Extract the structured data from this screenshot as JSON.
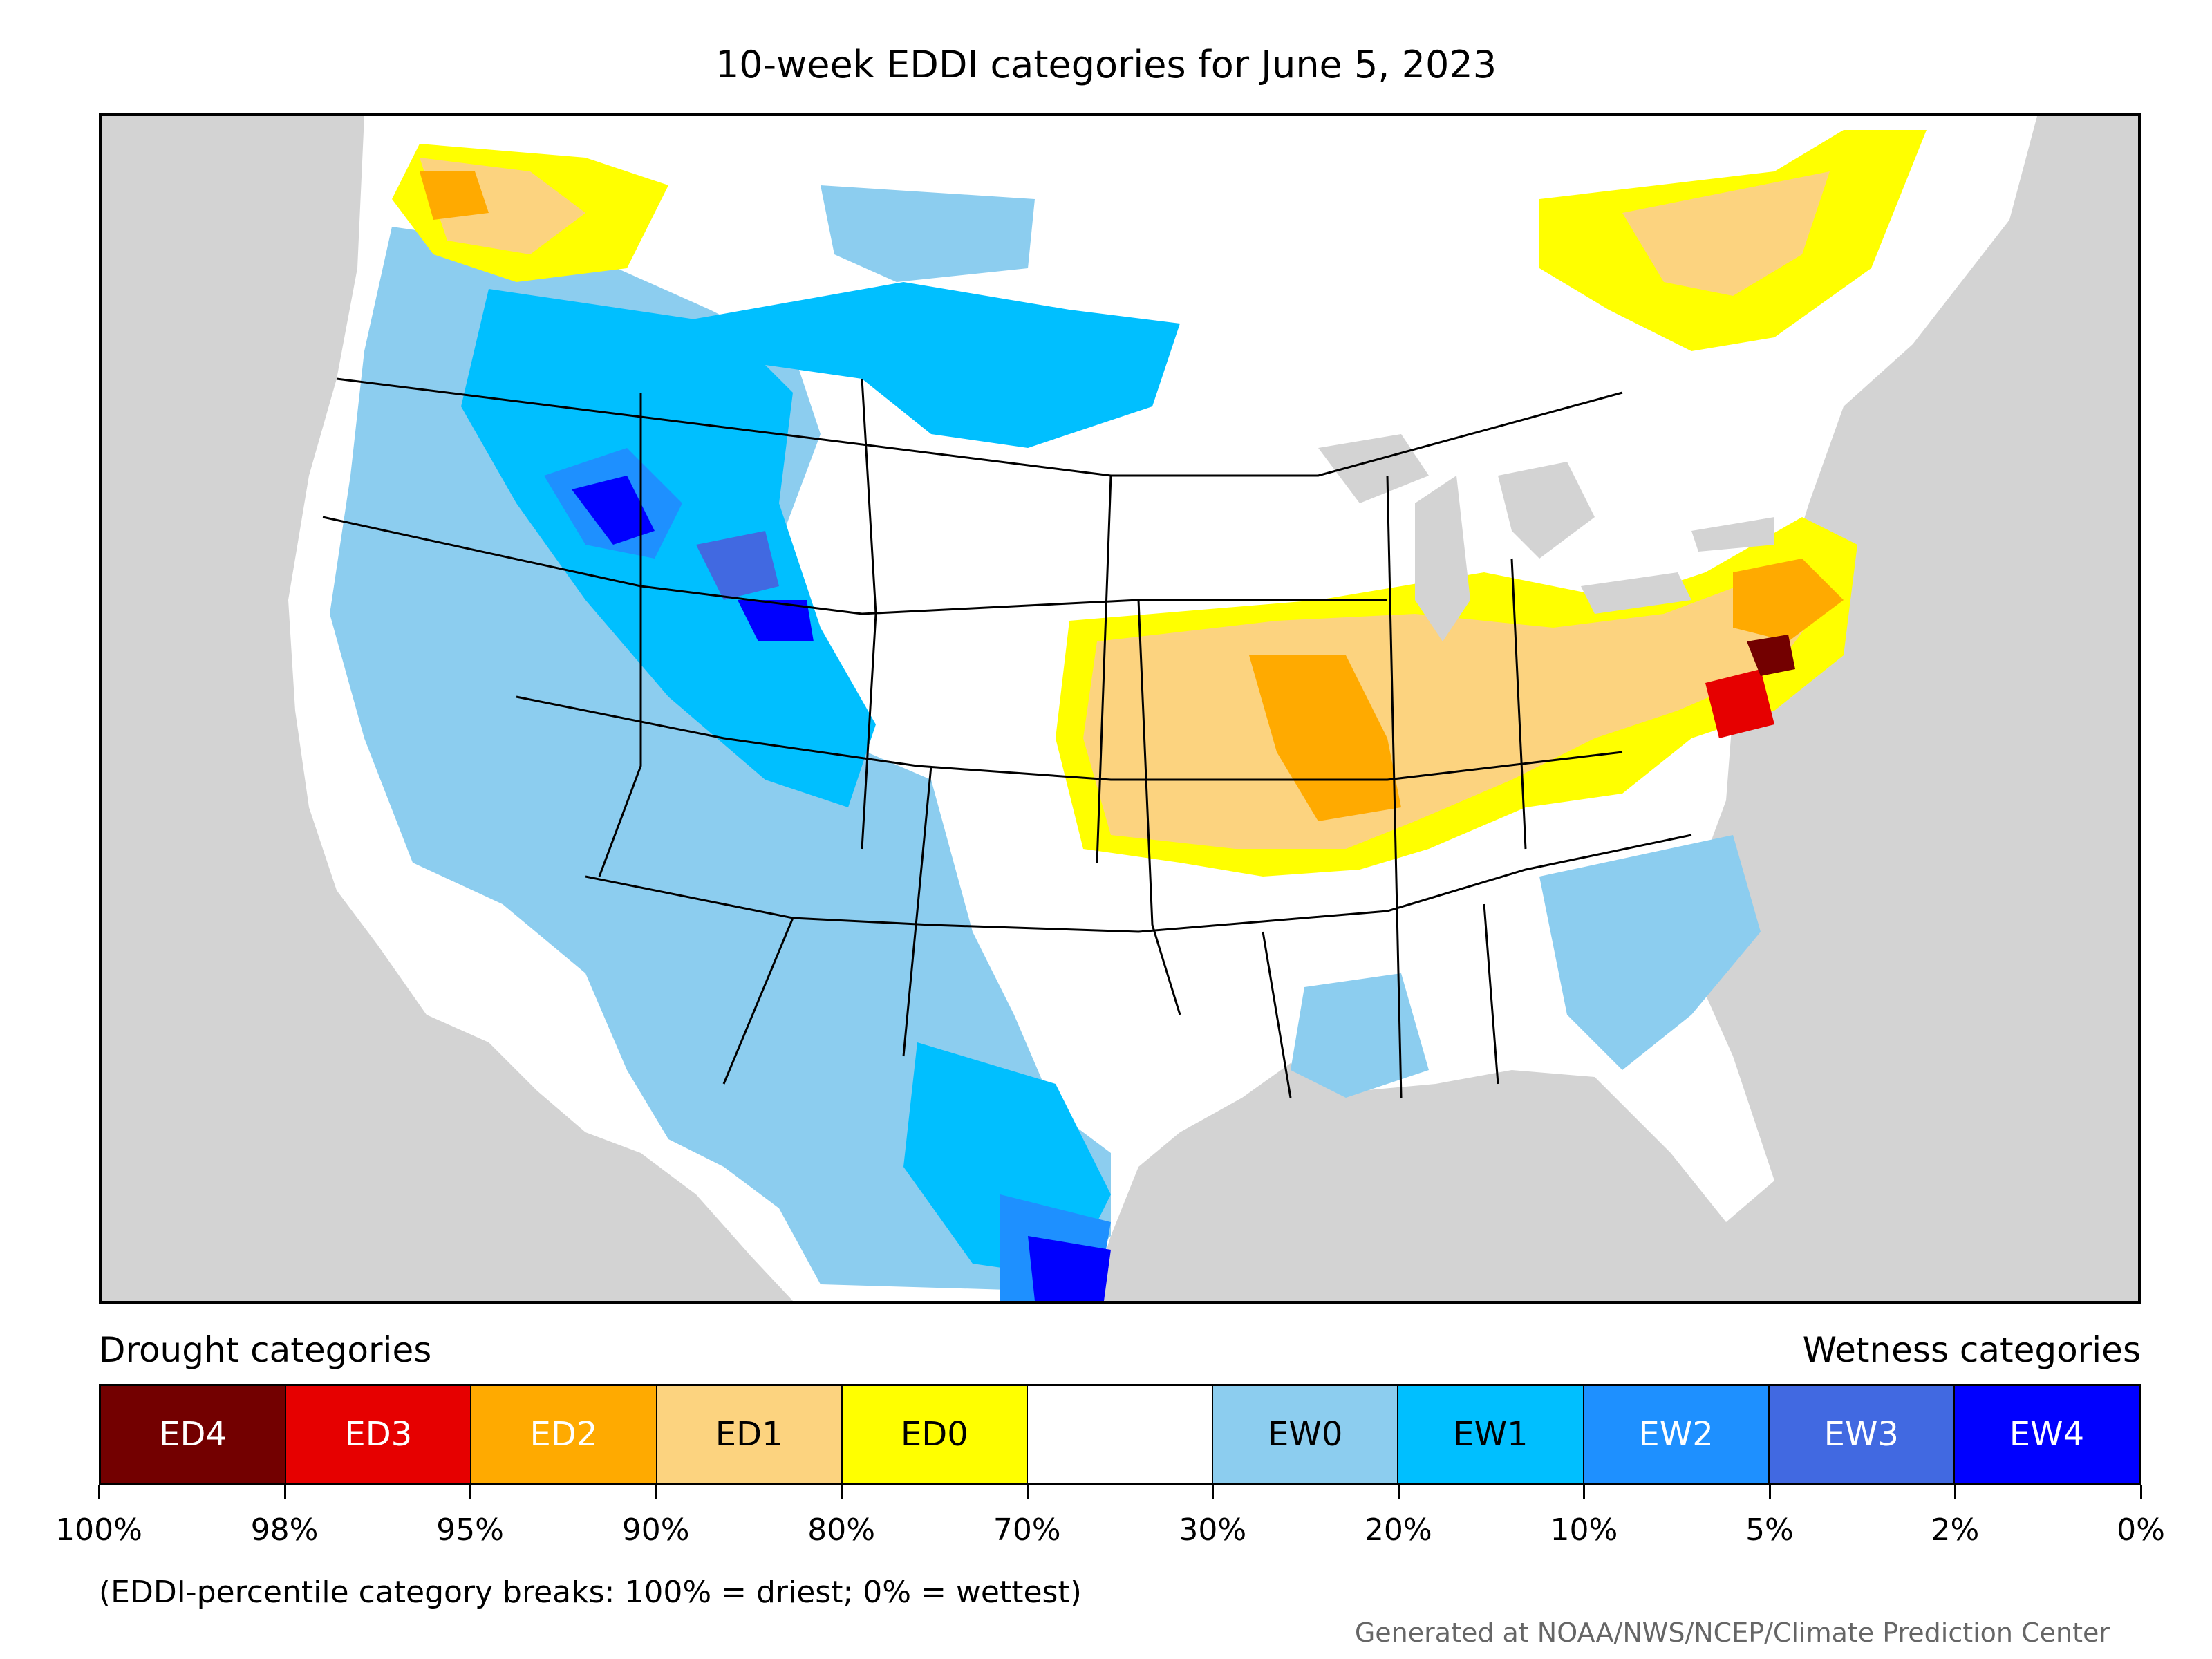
{
  "title": "10-week EDDI categories for June 5, 2023",
  "legend": {
    "drought_heading": "Drought categories",
    "wetness_heading": "Wetness categories",
    "categories": [
      {
        "label": "ED4",
        "color": "#730000",
        "text_color": "#ffffff"
      },
      {
        "label": "ED3",
        "color": "#e60000",
        "text_color": "#ffffff"
      },
      {
        "label": "ED2",
        "color": "#ffaa00",
        "text_color": "#ffffff"
      },
      {
        "label": "ED1",
        "color": "#fcd37f",
        "text_color": "#000000"
      },
      {
        "label": "ED0",
        "color": "#ffff00",
        "text_color": "#000000"
      },
      {
        "label": "",
        "color": "#ffffff",
        "text_color": "#000000"
      },
      {
        "label": "EW0",
        "color": "#8ccdef",
        "text_color": "#000000"
      },
      {
        "label": "EW1",
        "color": "#00bfff",
        "text_color": "#000000"
      },
      {
        "label": "EW2",
        "color": "#1e90ff",
        "text_color": "#ffffff"
      },
      {
        "label": "EW3",
        "color": "#4169e1",
        "text_color": "#ffffff"
      },
      {
        "label": "EW4",
        "color": "#0000ff",
        "text_color": "#ffffff"
      }
    ],
    "breaks": [
      "100%",
      "98%",
      "95%",
      "90%",
      "80%",
      "70%",
      "30%",
      "20%",
      "10%",
      "5%",
      "2%",
      "0%"
    ]
  },
  "note": "(EDDI-percentile category breaks: 100% = driest; 0% = wettest)",
  "credit": "Generated at NOAA/NWS/NCEP/Climate Prediction Center",
  "colors": {
    "land": "#ffffff",
    "water": "#d3d3d3",
    "border": "#000000"
  }
}
